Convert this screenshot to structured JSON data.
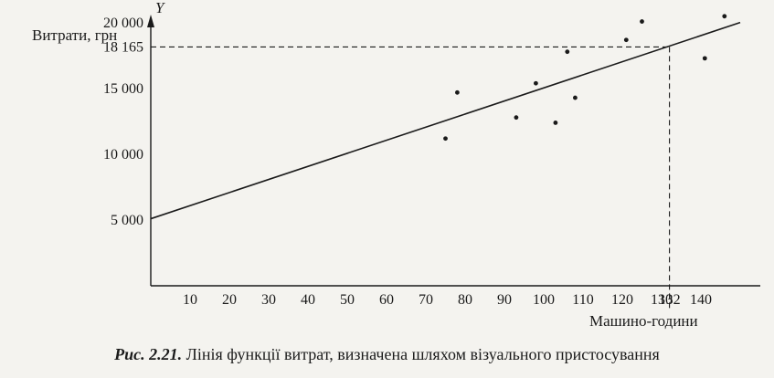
{
  "chart_data": {
    "type": "scatter",
    "ylabel": "Витрати, грн",
    "y_axis_symbol": "Y",
    "xlabel": "Машино-години",
    "xlim": [
      0,
      150
    ],
    "ylim": [
      0,
      21500
    ],
    "x_ticks": [
      "10",
      "20",
      "30",
      "40",
      "50",
      "60",
      "70",
      "80",
      "90",
      "100",
      "110",
      "120",
      "130",
      "132",
      "140"
    ],
    "y_ticks": [
      "5 000",
      "10 000",
      "15 000",
      "18 165",
      "20 000"
    ],
    "grid": false,
    "points": [
      {
        "x": 75,
        "y": 11200
      },
      {
        "x": 78,
        "y": 14700
      },
      {
        "x": 93,
        "y": 12800
      },
      {
        "x": 98,
        "y": 15400
      },
      {
        "x": 103,
        "y": 12400
      },
      {
        "x": 106,
        "y": 17800
      },
      {
        "x": 108,
        "y": 14300
      },
      {
        "x": 121,
        "y": 18700
      },
      {
        "x": 125,
        "y": 20100
      },
      {
        "x": 141,
        "y": 17300
      },
      {
        "x": 146,
        "y": 20500
      }
    ],
    "fit_line": {
      "intercept": 5100,
      "slope": 99.5,
      "x_range": [
        0,
        150
      ]
    },
    "reference": {
      "x": 132,
      "y": 18165,
      "x_label": "132",
      "y_label": "18 165"
    }
  },
  "caption": {
    "number": "Рис. 2.21.",
    "text": "Лінія функції витрат, визначена шляхом візуального пристосування"
  }
}
